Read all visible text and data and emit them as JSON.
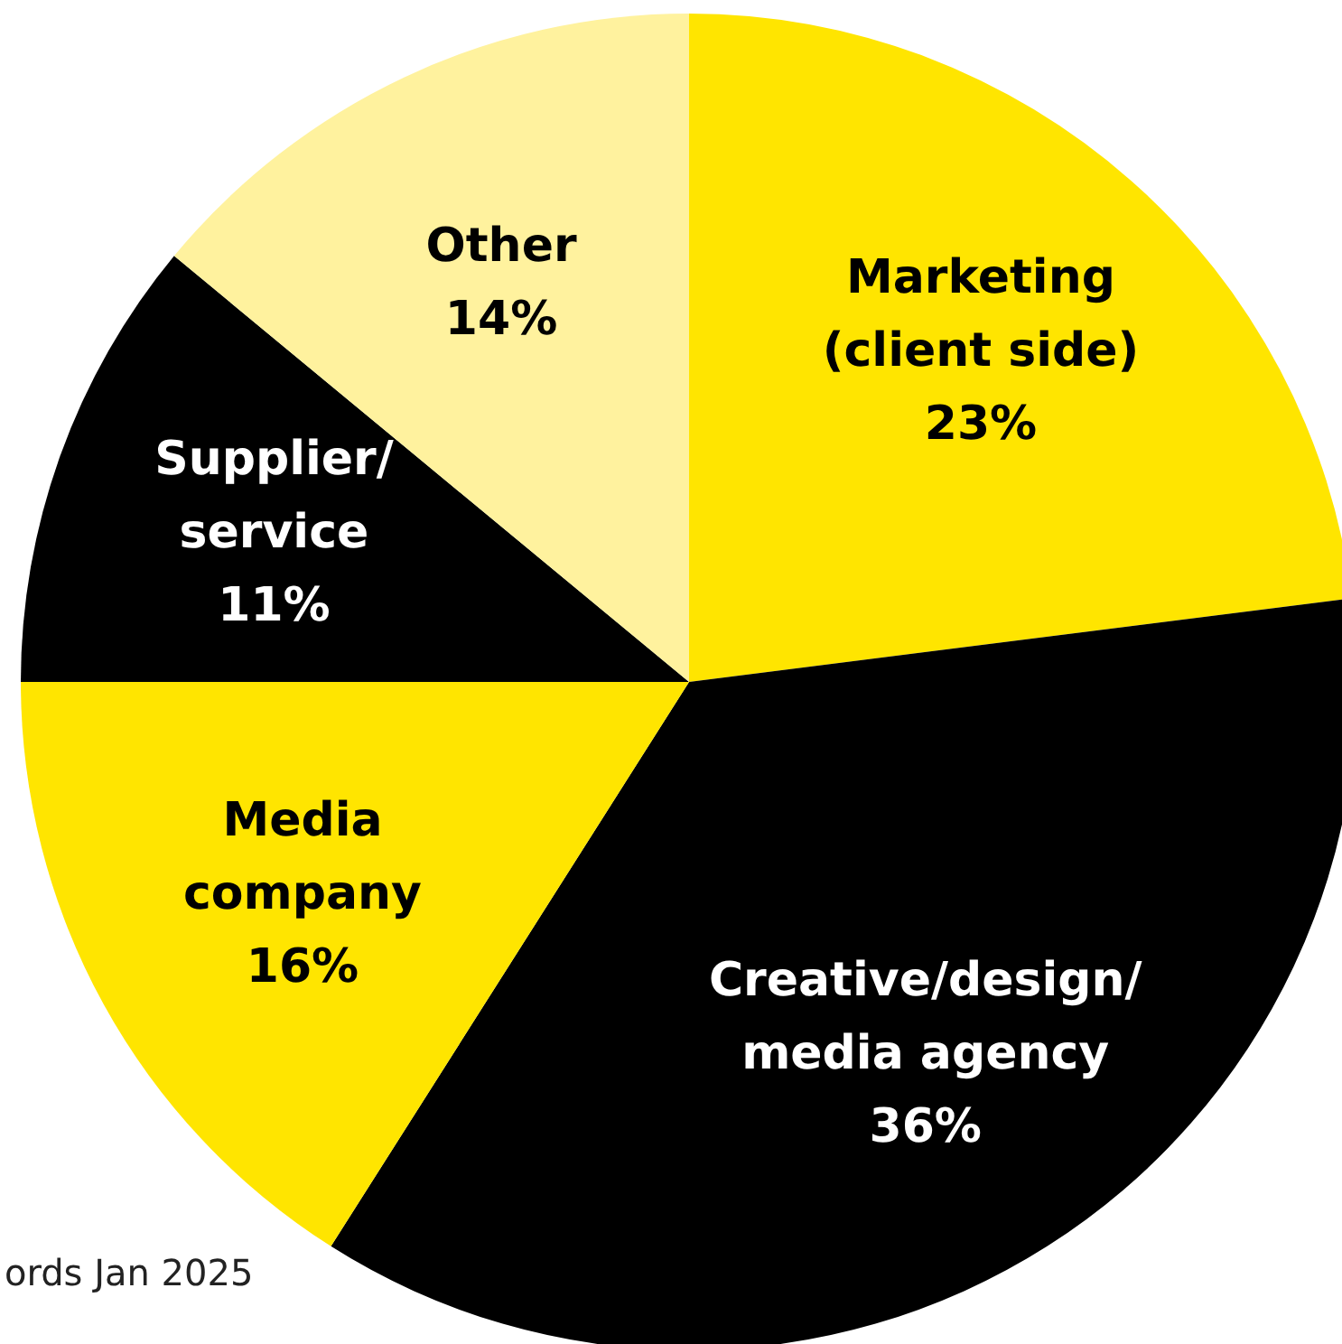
{
  "chart_data": {
    "type": "pie",
    "categories": [
      "Marketing\n(client side)",
      "Creative/design/\nmedia agency",
      "Media\ncompany",
      "Supplier/\nservice",
      "Other"
    ],
    "values": [
      23,
      36,
      16,
      11,
      14
    ],
    "colors": [
      "#ffe500",
      "#000000",
      "#ffe500",
      "#000000",
      "#fff29e"
    ],
    "value_labels": [
      "23%",
      "36%",
      "16%",
      "11%",
      "14%"
    ],
    "annotations": [
      "ords Jan 2025"
    ]
  }
}
